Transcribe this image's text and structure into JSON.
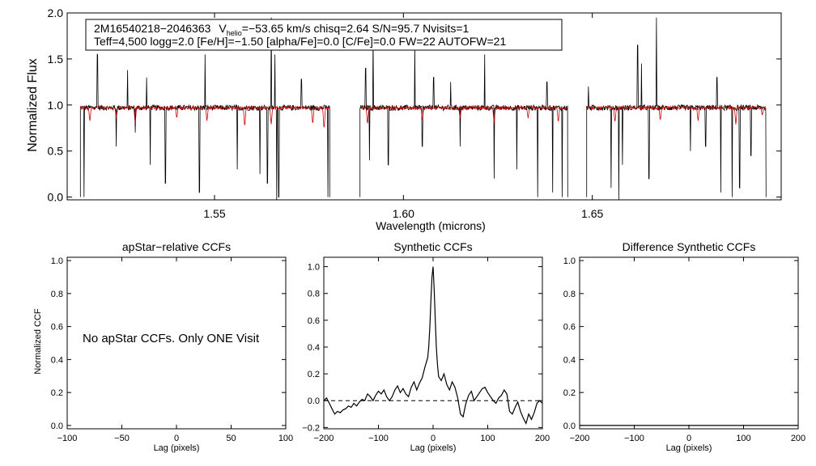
{
  "chart_data": [
    {
      "type": "line",
      "id": "spectrum",
      "xlabel": "Wavelength (microns)",
      "ylabel": "Normalized Flux",
      "xlim": [
        1.511,
        1.7
      ],
      "ylim": [
        -0.03,
        2.0
      ],
      "xticks": [
        {
          "value": 1.55,
          "label": "1.55"
        },
        {
          "value": 1.6,
          "label": "1.60"
        },
        {
          "value": 1.65,
          "label": "1.65"
        }
      ],
      "yticks": [
        {
          "value": 0.0,
          "label": "0.0"
        },
        {
          "value": 0.5,
          "label": "0.5"
        },
        {
          "value": 1.0,
          "label": "1.0"
        },
        {
          "value": 1.5,
          "label": "1.5"
        },
        {
          "value": 2.0,
          "label": "2.0"
        }
      ],
      "annotation": {
        "line1_id": "2M16540218−2046363",
        "line1_vhelio_label": "V",
        "line1_vhelio_sub": "helio",
        "line1_rest": "=−53.65 km/s  chisq=2.64  S/N=95.7  Nvisits=1",
        "line2": "Teff=4,500 logg=2.0 [Fe/H]=−1.50 [alpha/Fe]=0.0 [C/Fe]=0.0 FW=22 AUTOFW=21"
      },
      "series_style": [
        {
          "color": "#000000"
        },
        {
          "color": "#cc0000"
        }
      ],
      "chips": [
        [
          1.5145,
          1.5805
        ],
        [
          1.5885,
          1.6435
        ],
        [
          1.6485,
          1.696
        ]
      ],
      "spikes_up": [
        [
          1.519,
          1.55
        ],
        [
          1.527,
          1.38
        ],
        [
          1.532,
          1.3
        ],
        [
          1.5475,
          1.55
        ],
        [
          1.565,
          1.95
        ],
        [
          1.566,
          1.55
        ],
        [
          1.573,
          1.28
        ],
        [
          1.59,
          1.4
        ],
        [
          1.592,
          1.75
        ],
        [
          1.603,
          1.65
        ],
        [
          1.608,
          1.3
        ],
        [
          1.6125,
          1.25
        ],
        [
          1.6215,
          1.55
        ],
        [
          1.638,
          1.25
        ],
        [
          1.649,
          1.2
        ],
        [
          1.662,
          1.65
        ],
        [
          1.663,
          1.45
        ],
        [
          1.667,
          1.95
        ],
        [
          1.676,
          1.95
        ],
        [
          1.68,
          1.5
        ],
        [
          1.683,
          1.3
        ]
      ],
      "spikes_down": [
        [
          1.5155,
          0.0
        ],
        [
          1.524,
          0.55
        ],
        [
          1.529,
          0.7
        ],
        [
          1.533,
          0.35
        ],
        [
          1.537,
          0.15
        ],
        [
          1.546,
          0.05
        ],
        [
          1.556,
          0.3
        ],
        [
          1.562,
          0.25
        ],
        [
          1.564,
          0.15
        ],
        [
          1.5665,
          -0.03
        ],
        [
          1.567,
          0.0
        ],
        [
          1.58,
          0.0
        ],
        [
          1.591,
          0.4
        ],
        [
          1.596,
          0.35
        ],
        [
          1.605,
          0.55
        ],
        [
          1.615,
          0.55
        ],
        [
          1.624,
          0.2
        ],
        [
          1.63,
          0.3
        ],
        [
          1.6355,
          0.0
        ],
        [
          1.6395,
          0.05
        ],
        [
          1.642,
          0.0
        ],
        [
          1.655,
          0.1
        ],
        [
          1.657,
          -0.03
        ],
        [
          1.658,
          0.35
        ],
        [
          1.665,
          0.2
        ],
        [
          1.676,
          0.5
        ],
        [
          1.68,
          0.55
        ],
        [
          1.684,
          0.05
        ],
        [
          1.687,
          0.0
        ],
        [
          1.689,
          0.1
        ],
        [
          1.692,
          0.45
        ]
      ],
      "red_dips": [
        [
          1.517,
          0.82
        ],
        [
          1.524,
          0.85
        ],
        [
          1.529,
          0.8
        ],
        [
          1.54,
          0.85
        ],
        [
          1.548,
          0.82
        ],
        [
          1.558,
          0.75
        ],
        [
          1.565,
          0.78
        ],
        [
          1.576,
          0.78
        ],
        [
          1.579,
          0.72
        ],
        [
          1.5905,
          0.78
        ],
        [
          1.605,
          0.82
        ],
        [
          1.615,
          0.85
        ],
        [
          1.624,
          0.8
        ],
        [
          1.633,
          0.85
        ],
        [
          1.641,
          0.8
        ],
        [
          1.656,
          0.8
        ],
        [
          1.668,
          0.82
        ],
        [
          1.678,
          0.82
        ],
        [
          1.688,
          0.78
        ],
        [
          1.695,
          0.88
        ]
      ]
    },
    {
      "type": "line",
      "id": "apstar-ccf",
      "title": "apStar−relative CCFs",
      "xlabel": "Lag (pixels)",
      "ylabel": "Normalized CCF",
      "xlim": [
        -100,
        100
      ],
      "ylim": [
        -0.02,
        1.02
      ],
      "xticks": [
        {
          "value": -100,
          "label": "−100"
        },
        {
          "value": -50,
          "label": "−50"
        },
        {
          "value": 0,
          "label": "0"
        },
        {
          "value": 50,
          "label": "50"
        },
        {
          "value": 100,
          "label": "100"
        }
      ],
      "yticks": [
        {
          "value": 0.0,
          "label": "0.0"
        },
        {
          "value": 0.2,
          "label": "0.2"
        },
        {
          "value": 0.4,
          "label": "0.4"
        },
        {
          "value": 0.6,
          "label": "0.6"
        },
        {
          "value": 0.8,
          "label": "0.8"
        },
        {
          "value": 1.0,
          "label": "1.0"
        }
      ],
      "message": "No apStar CCFs.  Only ONE Visit",
      "series": []
    },
    {
      "type": "line",
      "id": "synthetic-ccf",
      "title": "Synthetic CCFs",
      "xlabel": "Lag (pixels)",
      "xlim": [
        -200,
        200
      ],
      "ylim": [
        -0.21,
        1.07
      ],
      "xticks": [
        {
          "value": -200,
          "label": "−200"
        },
        {
          "value": -100,
          "label": "−100"
        },
        {
          "value": 0,
          "label": "0"
        },
        {
          "value": 100,
          "label": "100"
        },
        {
          "value": 200,
          "label": "200"
        }
      ],
      "yticks": [
        {
          "value": -0.2,
          "label": "−0.2"
        },
        {
          "value": 0.0,
          "label": "0.0"
        },
        {
          "value": 0.2,
          "label": "0.2"
        },
        {
          "value": 0.4,
          "label": "0.4"
        },
        {
          "value": 0.6,
          "label": "0.6"
        },
        {
          "value": 0.8,
          "label": "0.8"
        },
        {
          "value": 1.0,
          "label": "1.0"
        }
      ],
      "zero_line": 0.0,
      "series": [
        {
          "x": [
            -200,
            -195,
            -190,
            -185,
            -180,
            -175,
            -170,
            -165,
            -160,
            -155,
            -150,
            -145,
            -140,
            -135,
            -130,
            -125,
            -120,
            -115,
            -110,
            -105,
            -100,
            -95,
            -90,
            -85,
            -80,
            -75,
            -70,
            -65,
            -60,
            -55,
            -50,
            -45,
            -40,
            -35,
            -30,
            -25,
            -20,
            -15,
            -10,
            -8,
            -6,
            -4,
            -2,
            0,
            2,
            4,
            6,
            8,
            10,
            15,
            20,
            25,
            30,
            35,
            40,
            45,
            50,
            55,
            60,
            65,
            70,
            75,
            80,
            85,
            90,
            95,
            100,
            105,
            110,
            115,
            120,
            125,
            130,
            135,
            140,
            145,
            150,
            155,
            160,
            165,
            170,
            175,
            180,
            185,
            190,
            195,
            200
          ],
          "y": [
            0.0,
            0.02,
            -0.02,
            -0.06,
            -0.1,
            -0.08,
            -0.09,
            -0.07,
            -0.06,
            -0.04,
            -0.05,
            -0.02,
            -0.04,
            -0.01,
            0.01,
            0.0,
            0.05,
            0.03,
            0.0,
            0.04,
            0.07,
            0.05,
            0.08,
            0.03,
            0.0,
            0.03,
            0.08,
            0.11,
            0.06,
            0.09,
            0.05,
            0.03,
            0.1,
            0.14,
            0.08,
            0.13,
            0.17,
            0.25,
            0.32,
            0.4,
            0.55,
            0.75,
            0.92,
            1.0,
            0.82,
            0.6,
            0.4,
            0.27,
            0.18,
            0.15,
            0.2,
            0.12,
            0.08,
            0.14,
            0.1,
            0.02,
            -0.1,
            -0.12,
            -0.02,
            0.04,
            0.07,
            0.0,
            0.03,
            0.06,
            0.09,
            0.1,
            0.06,
            0.03,
            0.0,
            -0.02,
            0.02,
            0.04,
            0.08,
            0.05,
            -0.08,
            -0.1,
            -0.05,
            -0.01,
            -0.08,
            -0.13,
            -0.17,
            -0.1,
            -0.14,
            -0.09,
            -0.02,
            0.0,
            -0.02
          ]
        }
      ]
    },
    {
      "type": "line",
      "id": "difference-ccf",
      "title": "Difference Synthetic CCFs",
      "xlabel": "Lag (pixels)",
      "xlim": [
        -200,
        200
      ],
      "ylim": [
        -0.02,
        1.02
      ],
      "xticks": [
        {
          "value": -200,
          "label": "−200"
        },
        {
          "value": -100,
          "label": "−100"
        },
        {
          "value": 0,
          "label": "0"
        },
        {
          "value": 100,
          "label": "100"
        },
        {
          "value": 200,
          "label": "200"
        }
      ],
      "yticks": [
        {
          "value": 0.0,
          "label": "0.0"
        },
        {
          "value": 0.2,
          "label": "0.2"
        },
        {
          "value": 0.4,
          "label": "0.4"
        },
        {
          "value": 0.6,
          "label": "0.6"
        },
        {
          "value": 0.8,
          "label": "0.8"
        },
        {
          "value": 1.0,
          "label": "1.0"
        }
      ],
      "series": [
        {
          "x": [
            -200,
            200
          ],
          "y": [
            0.0,
            0.0
          ]
        }
      ]
    }
  ]
}
